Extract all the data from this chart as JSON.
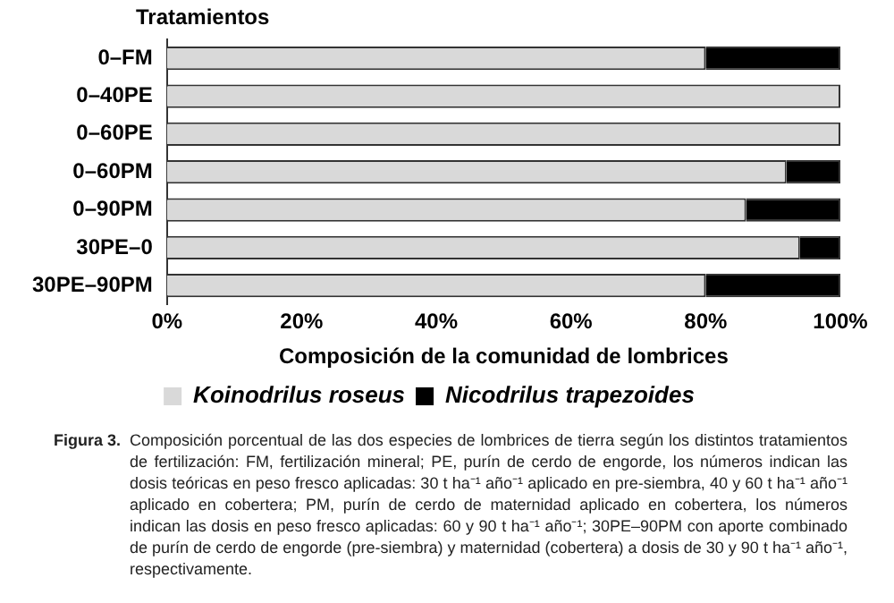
{
  "chart_data": {
    "type": "bar",
    "orientation": "horizontal",
    "stacked": true,
    "ylabel": "Tratamientos",
    "xlabel": "Composición de la comunidad de lombrices",
    "categories": [
      "0–FM",
      "0–40PE",
      "0–60PE",
      "0–60PM",
      "0–90PM",
      "30PE–0",
      "30PE–90PM"
    ],
    "series": [
      {
        "name": "Koinodrilus roseus",
        "color": "#d9d9d9",
        "values": [
          80,
          100,
          100,
          92,
          86,
          94,
          80
        ]
      },
      {
        "name": "Nicodrilus trapezoides",
        "color": "#000000",
        "values": [
          20,
          0,
          0,
          8,
          14,
          6,
          20
        ]
      }
    ],
    "xlim": [
      0,
      100
    ],
    "xticks": [
      {
        "value": 0,
        "label": "0%"
      },
      {
        "value": 20,
        "label": "20%"
      },
      {
        "value": 40,
        "label": "40%"
      },
      {
        "value": 60,
        "label": "60%"
      },
      {
        "value": 80,
        "label": "80%"
      },
      {
        "value": 100,
        "label": "100%"
      }
    ],
    "grid": false,
    "legend": "bottom",
    "annotations": [
      "Figura 3.",
      "Composición porcentual de las dos especies de lombrices de tierra según los distintos tratamientos de fertilización: FM, fertilización mineral; PE, purín de cerdo de engorde, los números indican las dosis teóricas en peso fresco aplicadas: 30 t ha⁻¹ año⁻¹ aplicado en pre-siembra, 40 y 60 t ha⁻¹ año⁻¹ aplicado en cobertera; PM, purín de cerdo de maternidad aplicado en cobertera, los números indican las dosis en peso fresco aplicadas: 60 y 90 t ha⁻¹ año⁻¹; 30PE–90PM con aporte combinado de purín de cerdo de engorde (pre-siembra) y maternidad (cobertera) a dosis de 30 y 90 t ha⁻¹ año⁻¹, respectivamente."
    ]
  }
}
